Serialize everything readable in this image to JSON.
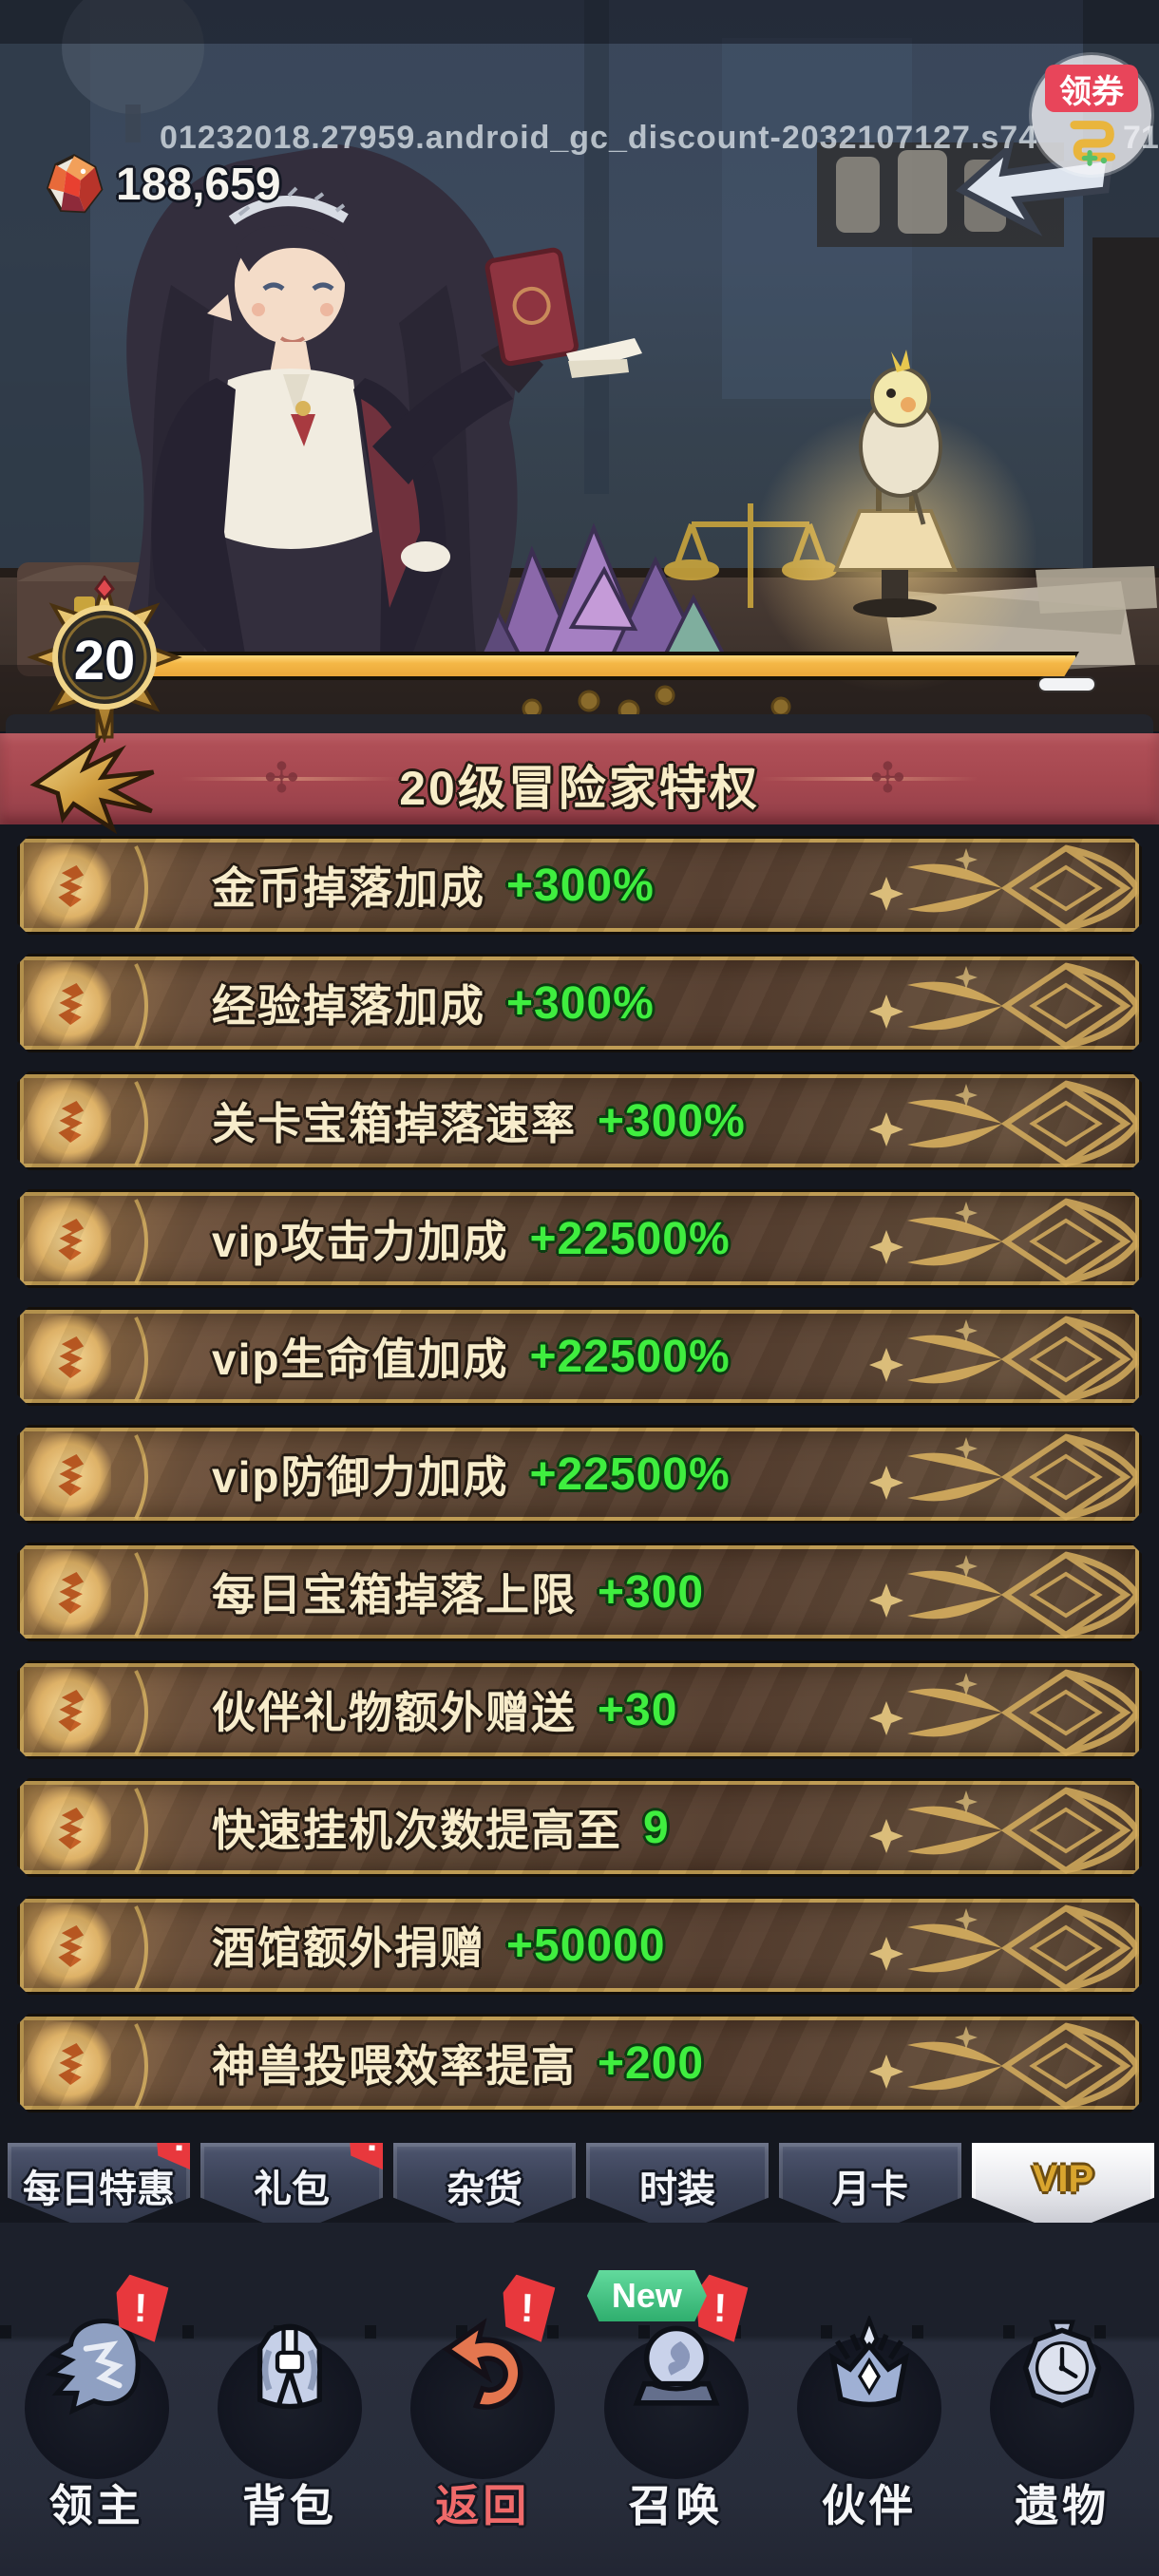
{
  "scene": {
    "watermark": "01232018.27959.android_gc_discount-2032107127.s74",
    "watermark_tail": "71",
    "currency": {
      "icon": "gem",
      "amount": "188,659"
    },
    "coupon_button": {
      "label": "领券",
      "icon": "coupon-snake"
    },
    "level_badge": {
      "level": "20"
    },
    "progress_percent": 100
  },
  "banner": {
    "title": "20级冒险家特权",
    "back_icon": "back-arrow",
    "side_ornament": "✣"
  },
  "privileges": [
    {
      "label": "金币掉落加成",
      "value": "+300%"
    },
    {
      "label": "经验掉落加成",
      "value": "+300%"
    },
    {
      "label": "关卡宝箱掉落速率",
      "value": "+300%"
    },
    {
      "label": "vip攻击力加成",
      "value": "+22500%"
    },
    {
      "label": "vip生命值加成",
      "value": "+22500%"
    },
    {
      "label": "vip防御力加成",
      "value": "+22500%"
    },
    {
      "label": "每日宝箱掉落上限",
      "value": "+300"
    },
    {
      "label": "伙伴礼物额外赠送",
      "value": "+30"
    },
    {
      "label": "快速挂机次数提高至",
      "value": "9"
    },
    {
      "label": "酒馆额外捐赠",
      "value": "+50000"
    },
    {
      "label": "神兽投喂效率提高",
      "value": "+200"
    }
  ],
  "shop_tabs": [
    {
      "label": "每日特惠",
      "badge": "!"
    },
    {
      "label": "礼包",
      "badge": "!"
    },
    {
      "label": "杂货"
    },
    {
      "label": "时装"
    },
    {
      "label": "月卡"
    },
    {
      "label": "VIP",
      "active": true
    }
  ],
  "bottom_nav": [
    {
      "label": "领主",
      "icon": "lion",
      "badge": "!"
    },
    {
      "label": "背包",
      "icon": "backpack"
    },
    {
      "label": "返回",
      "icon": "return-arrow",
      "badge": "!",
      "highlight": true
    },
    {
      "label": "召唤",
      "icon": "crystal-ball",
      "badge": "!",
      "new_badge": "New"
    },
    {
      "label": "伙伴",
      "icon": "crown"
    },
    {
      "label": "遗物",
      "icon": "pocket-watch"
    }
  ],
  "colors": {
    "accent_gold": "#d8b05e",
    "value_green": "#3fee3f",
    "banner_red": "#a84a50",
    "badge_red": "#e8383d",
    "new_green": "#3fc98a",
    "progress_amber": "#f2b244"
  }
}
